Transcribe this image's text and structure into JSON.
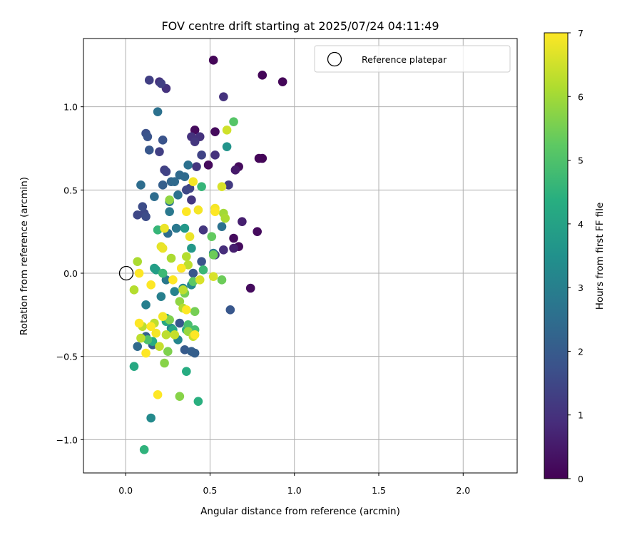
{
  "chart_data": {
    "type": "scatter",
    "title": "FOV centre drift starting at 2025/07/24 04:11:49",
    "xlabel": "Angular distance from reference (arcmin)",
    "ylabel": "Rotation from reference (arcmin)",
    "xlim": [
      -0.25,
      2.32
    ],
    "ylim": [
      -1.2,
      1.41
    ],
    "xticks": [
      0.0,
      0.5,
      1.0,
      1.5,
      2.0
    ],
    "xtick_labels": [
      "0.0",
      "0.5",
      "1.0",
      "1.5",
      "2.0"
    ],
    "yticks": [
      -1.0,
      -0.5,
      0.0,
      0.5,
      1.0
    ],
    "ytick_labels": [
      "−1.0",
      "−0.5",
      "0.0",
      "0.5",
      "1.0"
    ],
    "grid": true,
    "legend": {
      "location": "upper right",
      "entries": [
        "Reference platepar"
      ]
    },
    "reference_point": {
      "label": "Reference platepar",
      "x": 0.0,
      "y": 0.0,
      "marker": "open-circle"
    },
    "colorbar": {
      "label": "Hours from first FF file",
      "colormap": "viridis",
      "range": [
        0,
        7
      ],
      "ticks": [
        0,
        1,
        2,
        3,
        4,
        5,
        6,
        7
      ],
      "tick_labels": [
        "0",
        "1",
        "2",
        "3",
        "4",
        "5",
        "6",
        "7"
      ]
    },
    "points": [
      {
        "x": 0.52,
        "y": 1.28,
        "h": 0.1
      },
      {
        "x": 0.81,
        "y": 1.19,
        "h": 0.1
      },
      {
        "x": 0.93,
        "y": 1.15,
        "h": 0.1
      },
      {
        "x": 0.79,
        "y": 0.69,
        "h": 0.1
      },
      {
        "x": 0.81,
        "y": 0.69,
        "h": 0.1
      },
      {
        "x": 0.41,
        "y": 0.86,
        "h": 0.2
      },
      {
        "x": 0.53,
        "y": 0.85,
        "h": 0.2
      },
      {
        "x": 0.49,
        "y": 0.65,
        "h": 0.2
      },
      {
        "x": 0.67,
        "y": 0.64,
        "h": 0.2
      },
      {
        "x": 0.64,
        "y": 0.21,
        "h": 0.2
      },
      {
        "x": 0.67,
        "y": 0.16,
        "h": 0.2
      },
      {
        "x": 0.78,
        "y": 0.25,
        "h": 0.2
      },
      {
        "x": 0.74,
        "y": -0.09,
        "h": 0.2
      },
      {
        "x": 0.65,
        "y": 0.62,
        "h": 0.5
      },
      {
        "x": 0.69,
        "y": 0.31,
        "h": 0.6
      },
      {
        "x": 0.64,
        "y": 0.15,
        "h": 0.6
      },
      {
        "x": 0.58,
        "y": 0.14,
        "h": 0.9
      },
      {
        "x": 0.2,
        "y": 1.15,
        "h": 1.0
      },
      {
        "x": 0.24,
        "y": 1.11,
        "h": 1.0
      },
      {
        "x": 0.58,
        "y": 1.06,
        "h": 1.0
      },
      {
        "x": 0.53,
        "y": 0.71,
        "h": 1.0
      },
      {
        "x": 0.44,
        "y": 0.82,
        "h": 1.0
      },
      {
        "x": 0.39,
        "y": 0.82,
        "h": 1.0
      },
      {
        "x": 0.41,
        "y": 0.79,
        "h": 1.1
      },
      {
        "x": 0.42,
        "y": 0.64,
        "h": 1.1
      },
      {
        "x": 0.39,
        "y": 0.44,
        "h": 1.1
      },
      {
        "x": 0.46,
        "y": 0.26,
        "h": 1.1
      },
      {
        "x": 0.53,
        "y": 0.11,
        "h": 1.2
      },
      {
        "x": 0.61,
        "y": 0.53,
        "h": 1.2
      },
      {
        "x": 0.21,
        "y": 1.14,
        "h": 1.3
      },
      {
        "x": 0.14,
        "y": 1.16,
        "h": 1.3
      },
      {
        "x": 0.2,
        "y": 0.73,
        "h": 1.3
      },
      {
        "x": 0.23,
        "y": 0.62,
        "h": 1.3
      },
      {
        "x": 0.45,
        "y": 0.71,
        "h": 1.4
      },
      {
        "x": 0.24,
        "y": 0.61,
        "h": 1.4
      },
      {
        "x": 0.38,
        "y": 0.51,
        "h": 1.4
      },
      {
        "x": 0.36,
        "y": 0.5,
        "h": 1.5
      },
      {
        "x": 0.07,
        "y": 0.35,
        "h": 1.5
      },
      {
        "x": 0.11,
        "y": 0.36,
        "h": 1.5
      },
      {
        "x": 0.12,
        "y": 0.34,
        "h": 1.6
      },
      {
        "x": 0.1,
        "y": 0.4,
        "h": 1.6
      },
      {
        "x": 0.12,
        "y": 0.84,
        "h": 1.7
      },
      {
        "x": 0.13,
        "y": 0.82,
        "h": 1.8
      },
      {
        "x": 0.22,
        "y": 0.8,
        "h": 1.8
      },
      {
        "x": 0.14,
        "y": 0.74,
        "h": 1.9
      },
      {
        "x": 0.45,
        "y": 0.07,
        "h": 1.8
      },
      {
        "x": 0.62,
        "y": -0.22,
        "h": 1.9
      },
      {
        "x": 0.4,
        "y": 0.0,
        "h": 1.9
      },
      {
        "x": 0.32,
        "y": -0.3,
        "h": 1.9
      },
      {
        "x": 0.35,
        "y": -0.46,
        "h": 2.0
      },
      {
        "x": 0.39,
        "y": -0.47,
        "h": 2.1
      },
      {
        "x": 0.41,
        "y": -0.48,
        "h": 2.1
      },
      {
        "x": 0.16,
        "y": -0.43,
        "h": 2.0
      },
      {
        "x": 0.07,
        "y": -0.44,
        "h": 2.4
      },
      {
        "x": 0.12,
        "y": -0.38,
        "h": 2.2
      },
      {
        "x": 0.22,
        "y": 0.53,
        "h": 2.1
      },
      {
        "x": 0.27,
        "y": 0.55,
        "h": 2.3
      },
      {
        "x": 0.29,
        "y": 0.55,
        "h": 2.4
      },
      {
        "x": 0.32,
        "y": 0.59,
        "h": 2.4
      },
      {
        "x": 0.35,
        "y": 0.58,
        "h": 2.4
      },
      {
        "x": 0.37,
        "y": 0.65,
        "h": 2.6
      },
      {
        "x": 0.19,
        "y": 0.97,
        "h": 2.6
      },
      {
        "x": 0.09,
        "y": 0.53,
        "h": 2.5
      },
      {
        "x": 0.17,
        "y": 0.46,
        "h": 2.5
      },
      {
        "x": 0.31,
        "y": 0.47,
        "h": 2.6
      },
      {
        "x": 0.26,
        "y": 0.43,
        "h": 2.7
      },
      {
        "x": 0.26,
        "y": 0.37,
        "h": 2.8
      },
      {
        "x": 0.25,
        "y": 0.24,
        "h": 2.5
      },
      {
        "x": 0.3,
        "y": 0.27,
        "h": 2.8
      },
      {
        "x": 0.57,
        "y": 0.28,
        "h": 2.6
      },
      {
        "x": 0.52,
        "y": 0.12,
        "h": 2.9
      },
      {
        "x": 0.24,
        "y": -0.04,
        "h": 2.8
      },
      {
        "x": 0.21,
        "y": -0.14,
        "h": 3.0
      },
      {
        "x": 0.12,
        "y": -0.19,
        "h": 3.0
      },
      {
        "x": 0.29,
        "y": -0.11,
        "h": 3.1
      },
      {
        "x": 0.34,
        "y": -0.09,
        "h": 3.2
      },
      {
        "x": 0.39,
        "y": -0.07,
        "h": 3.3
      },
      {
        "x": 0.31,
        "y": -0.4,
        "h": 3.2
      },
      {
        "x": 0.27,
        "y": -0.33,
        "h": 3.3
      },
      {
        "x": 0.15,
        "y": -0.87,
        "h": 3.3
      },
      {
        "x": 0.6,
        "y": 0.76,
        "h": 3.6
      },
      {
        "x": 0.39,
        "y": 0.15,
        "h": 3.7
      },
      {
        "x": 0.35,
        "y": 0.27,
        "h": 3.7
      },
      {
        "x": 0.17,
        "y": 0.03,
        "h": 3.9
      },
      {
        "x": 0.18,
        "y": 0.02,
        "h": 3.9
      },
      {
        "x": 0.24,
        "y": -0.27,
        "h": 4.1
      },
      {
        "x": 0.24,
        "y": -0.29,
        "h": 4.2
      },
      {
        "x": 0.28,
        "y": -0.34,
        "h": 4.2
      },
      {
        "x": 0.36,
        "y": -0.34,
        "h": 4.3
      },
      {
        "x": 0.16,
        "y": -0.41,
        "h": 4.3
      },
      {
        "x": 0.05,
        "y": -0.56,
        "h": 4.2
      },
      {
        "x": 0.36,
        "y": -0.59,
        "h": 4.3
      },
      {
        "x": 0.43,
        "y": -0.77,
        "h": 4.4
      },
      {
        "x": 0.11,
        "y": -1.06,
        "h": 4.5
      },
      {
        "x": 0.45,
        "y": 0.52,
        "h": 4.6
      },
      {
        "x": 0.46,
        "y": 0.02,
        "h": 4.7
      },
      {
        "x": 0.37,
        "y": -0.31,
        "h": 4.9
      },
      {
        "x": 0.41,
        "y": -0.34,
        "h": 4.9
      },
      {
        "x": 0.22,
        "y": 0.0,
        "h": 4.7
      },
      {
        "x": 0.13,
        "y": -0.4,
        "h": 5.0
      },
      {
        "x": 0.19,
        "y": 0.26,
        "h": 4.6
      },
      {
        "x": 0.64,
        "y": 0.91,
        "h": 5.1
      },
      {
        "x": 0.4,
        "y": -0.05,
        "h": 5.2
      },
      {
        "x": 0.51,
        "y": 0.22,
        "h": 5.3
      },
      {
        "x": 0.52,
        "y": 0.11,
        "h": 5.4
      },
      {
        "x": 0.57,
        "y": -0.04,
        "h": 5.4
      },
      {
        "x": 0.35,
        "y": -0.12,
        "h": 5.5
      },
      {
        "x": 0.41,
        "y": -0.23,
        "h": 5.5
      },
      {
        "x": 0.26,
        "y": -0.28,
        "h": 5.6
      },
      {
        "x": 0.25,
        "y": -0.47,
        "h": 5.6
      },
      {
        "x": 0.23,
        "y": -0.54,
        "h": 5.7
      },
      {
        "x": 0.32,
        "y": -0.74,
        "h": 5.7
      },
      {
        "x": 0.32,
        "y": -0.17,
        "h": 5.8
      },
      {
        "x": 0.37,
        "y": -0.35,
        "h": 5.9
      },
      {
        "x": 0.26,
        "y": 0.44,
        "h": 5.8
      },
      {
        "x": 0.58,
        "y": 0.36,
        "h": 6.0
      },
      {
        "x": 0.59,
        "y": 0.33,
        "h": 6.1
      },
      {
        "x": 0.27,
        "y": 0.09,
        "h": 6.1
      },
      {
        "x": 0.07,
        "y": 0.07,
        "h": 6.1
      },
      {
        "x": 0.05,
        "y": -0.1,
        "h": 6.2
      },
      {
        "x": 0.1,
        "y": -0.32,
        "h": 6.3
      },
      {
        "x": 0.09,
        "y": -0.39,
        "h": 6.3
      },
      {
        "x": 0.17,
        "y": -0.3,
        "h": 6.3
      },
      {
        "x": 0.2,
        "y": -0.44,
        "h": 6.4
      },
      {
        "x": 0.24,
        "y": -0.37,
        "h": 6.3
      },
      {
        "x": 0.29,
        "y": -0.37,
        "h": 6.4
      },
      {
        "x": 0.34,
        "y": -0.21,
        "h": 6.2
      },
      {
        "x": 0.34,
        "y": -0.1,
        "h": 6.3
      },
      {
        "x": 0.37,
        "y": 0.05,
        "h": 6.3
      },
      {
        "x": 0.36,
        "y": 0.1,
        "h": 6.2
      },
      {
        "x": 0.4,
        "y": -0.38,
        "h": 6.4
      },
      {
        "x": 0.6,
        "y": 0.86,
        "h": 6.5
      },
      {
        "x": 0.57,
        "y": 0.52,
        "h": 6.6
      },
      {
        "x": 0.52,
        "y": -0.02,
        "h": 6.6
      },
      {
        "x": 0.44,
        "y": -0.04,
        "h": 6.6
      },
      {
        "x": 0.21,
        "y": 0.16,
        "h": 6.7
      },
      {
        "x": 0.22,
        "y": 0.15,
        "h": 6.8
      },
      {
        "x": 0.23,
        "y": 0.27,
        "h": 6.8
      },
      {
        "x": 0.38,
        "y": 0.22,
        "h": 6.8
      },
      {
        "x": 0.4,
        "y": 0.55,
        "h": 6.9
      },
      {
        "x": 0.43,
        "y": 0.38,
        "h": 6.9
      },
      {
        "x": 0.53,
        "y": 0.39,
        "h": 6.9
      },
      {
        "x": 0.53,
        "y": 0.37,
        "h": 7.0
      },
      {
        "x": 0.36,
        "y": 0.37,
        "h": 7.0
      },
      {
        "x": 0.28,
        "y": -0.04,
        "h": 7.0
      },
      {
        "x": 0.33,
        "y": 0.03,
        "h": 7.0
      },
      {
        "x": 0.22,
        "y": -0.26,
        "h": 6.9
      },
      {
        "x": 0.15,
        "y": -0.07,
        "h": 7.0
      },
      {
        "x": 0.08,
        "y": 0.0,
        "h": 7.0
      },
      {
        "x": 0.08,
        "y": -0.3,
        "h": 7.0
      },
      {
        "x": 0.15,
        "y": -0.32,
        "h": 7.0
      },
      {
        "x": 0.18,
        "y": -0.36,
        "h": 6.9
      },
      {
        "x": 0.12,
        "y": -0.48,
        "h": 7.0
      },
      {
        "x": 0.19,
        "y": -0.73,
        "h": 7.0
      },
      {
        "x": 0.36,
        "y": -0.22,
        "h": 7.0
      },
      {
        "x": 0.41,
        "y": -0.37,
        "h": 7.0
      }
    ]
  }
}
